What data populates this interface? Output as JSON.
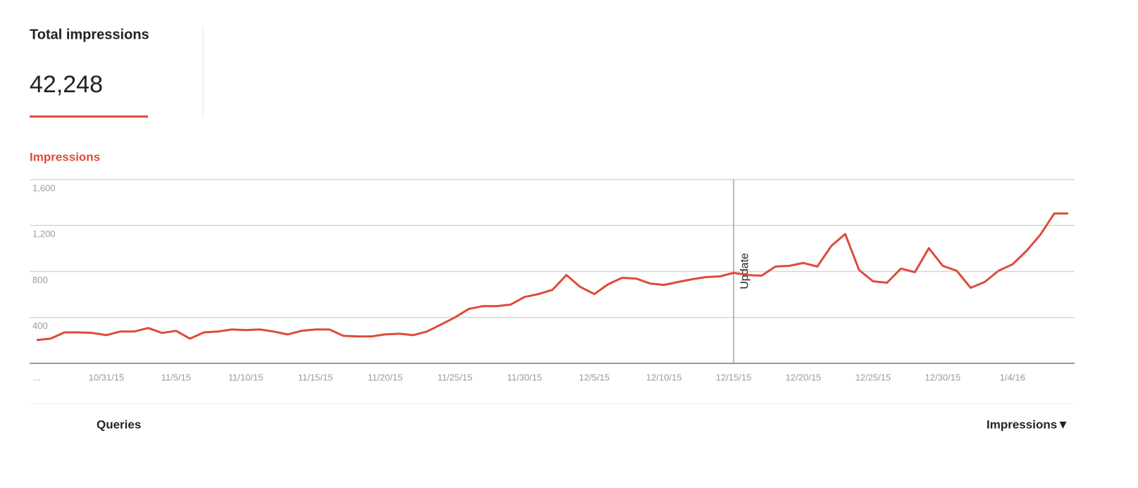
{
  "header": {
    "title": "Total impressions",
    "total": "42,248"
  },
  "chart_data": {
    "type": "line",
    "categories": [
      "...",
      null,
      null,
      null,
      null,
      "10/31/15",
      null,
      null,
      null,
      null,
      "11/5/15",
      null,
      null,
      null,
      null,
      "11/10/15",
      null,
      null,
      null,
      null,
      "11/15/15",
      null,
      null,
      null,
      null,
      "11/20/15",
      null,
      null,
      null,
      null,
      "11/25/15",
      null,
      null,
      null,
      null,
      "11/30/15",
      null,
      null,
      null,
      null,
      "12/5/15",
      null,
      null,
      null,
      null,
      "12/10/15",
      null,
      null,
      null,
      null,
      "12/15/15",
      null,
      null,
      null,
      null,
      "12/20/15",
      null,
      null,
      null,
      null,
      "12/25/15",
      null,
      null,
      null,
      null,
      "12/30/15",
      null,
      null,
      null,
      null,
      "1/4/16",
      null,
      null,
      null,
      null
    ],
    "series": [
      {
        "name": "Impressions",
        "color": "#dd4b39",
        "values": [
          203,
          215,
          270,
          270,
          265,
          246,
          277,
          277,
          308,
          265,
          283,
          215,
          270,
          277,
          295,
          290,
          295,
          277,
          252,
          283,
          295,
          295,
          240,
          234,
          234,
          252,
          258,
          246,
          277,
          338,
          400,
          474,
          498,
          498,
          511,
          578,
          603,
          640,
          769,
          665,
          603,
          689,
          745,
          738,
          695,
          683,
          708,
          732,
          751,
          757,
          788,
          769,
          763,
          843,
          849,
          874,
          843,
          1022,
          1126,
          812,
          714,
          702,
          825,
          794,
          1003,
          849,
          806,
          658,
          708,
          806,
          862,
          978,
          1120,
          1305,
          1305
        ]
      }
    ],
    "ylim": [
      0,
      1600
    ],
    "yticks": [
      400,
      800,
      {
        "value": 1200,
        "label": "1,200"
      },
      {
        "value": 1600,
        "label": "1,600"
      }
    ],
    "grid": true,
    "annotations": [
      {
        "label": "Update",
        "at": "12/15/15"
      }
    ]
  },
  "footer": {
    "left": "Queries",
    "right": "Impressions▼"
  }
}
